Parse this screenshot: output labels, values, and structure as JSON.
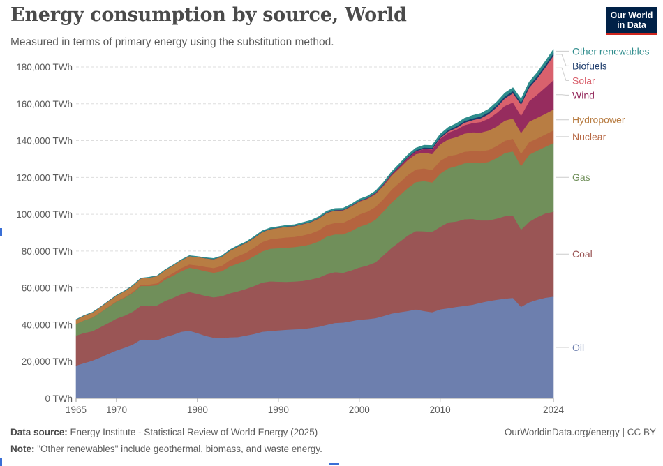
{
  "header": {
    "title": "Energy consumption by source, World",
    "subtitle": "Measured in terms of primary energy using the substitution method.",
    "logo_line1": "Our World",
    "logo_line2": "in Data"
  },
  "footer": {
    "source_label": "Data source:",
    "source_text": "Energy Institute - Statistical Review of World Energy (2025)",
    "note_label": "Note:",
    "note_text": "\"Other renewables\" include geothermal, biomass, and waste energy.",
    "credit": "OurWorldinData.org/energy | CC BY"
  },
  "chart_data": {
    "type": "area",
    "stacked": true,
    "title": "Energy consumption by source, World",
    "xlabel": "",
    "ylabel": "",
    "x_ticks": [
      1965,
      1970,
      1980,
      1990,
      2000,
      2010,
      2024
    ],
    "y_ticks": [
      0,
      20000,
      40000,
      60000,
      80000,
      100000,
      120000,
      140000,
      160000,
      180000
    ],
    "y_tick_labels": [
      "0 TWh",
      "20,000 TWh",
      "40,000 TWh",
      "60,000 TWh",
      "80,000 TWh",
      "100,000 TWh",
      "120,000 TWh",
      "140,000 TWh",
      "160,000 TWh",
      "180,000 TWh"
    ],
    "xlim": [
      1965,
      2024
    ],
    "ylim": [
      0,
      180000
    ],
    "grid": true,
    "legend_position": "right, labels at series ends",
    "x": [
      1965,
      1966,
      1967,
      1968,
      1969,
      1970,
      1971,
      1972,
      1973,
      1974,
      1975,
      1976,
      1977,
      1978,
      1979,
      1980,
      1981,
      1982,
      1983,
      1984,
      1985,
      1986,
      1987,
      1988,
      1989,
      1990,
      1991,
      1992,
      1993,
      1994,
      1995,
      1996,
      1997,
      1998,
      1999,
      2000,
      2001,
      2002,
      2003,
      2004,
      2005,
      2006,
      2007,
      2008,
      2009,
      2010,
      2011,
      2012,
      2013,
      2014,
      2015,
      2016,
      2017,
      2018,
      2019,
      2020,
      2021,
      2022,
      2023,
      2024
    ],
    "series": [
      {
        "name": "Oil",
        "color": "#6d7fae",
        "values": [
          17900,
          19200,
          20500,
          22300,
          24200,
          26100,
          27600,
          29300,
          31900,
          31800,
          31600,
          33400,
          34600,
          36200,
          36800,
          35500,
          34000,
          33000,
          32800,
          33200,
          33300,
          34200,
          35000,
          36200,
          36700,
          37000,
          37300,
          37500,
          37700,
          38300,
          38900,
          40000,
          41000,
          41200,
          42000,
          42800,
          43100,
          43600,
          44800,
          46100,
          46800,
          47500,
          48300,
          47500,
          46800,
          48400,
          49000,
          49700,
          50300,
          50900,
          52000,
          52900,
          53600,
          54200,
          54600,
          49700,
          52200,
          53600,
          54700,
          55300
        ]
      },
      {
        "name": "Coal",
        "color": "#9a5555",
        "values": [
          16200,
          16400,
          16000,
          16400,
          16800,
          17300,
          17400,
          17800,
          18400,
          18300,
          18900,
          19500,
          20100,
          20400,
          21000,
          21300,
          21700,
          21900,
          22700,
          23900,
          24900,
          25300,
          26100,
          26700,
          26900,
          26400,
          26000,
          26000,
          26100,
          26300,
          26700,
          27500,
          27600,
          27000,
          27500,
          28300,
          29100,
          30300,
          33000,
          35700,
          38300,
          41000,
          42600,
          43300,
          43700,
          44800,
          46600,
          46400,
          47000,
          46600,
          44700,
          43800,
          44100,
          44800,
          44800,
          42000,
          43800,
          44900,
          45800,
          46100
        ]
      },
      {
        "name": "Gas",
        "color": "#708f5a",
        "values": [
          6300,
          6800,
          7400,
          8000,
          8700,
          9200,
          9700,
          10300,
          10800,
          11000,
          11000,
          11600,
          12000,
          12500,
          13200,
          13400,
          13400,
          13400,
          13600,
          14600,
          15100,
          15400,
          16200,
          17000,
          17700,
          18200,
          18600,
          18700,
          19000,
          19100,
          19700,
          20500,
          20500,
          20900,
          21400,
          22200,
          22500,
          23200,
          23800,
          24600,
          25200,
          25800,
          26600,
          27300,
          26800,
          28900,
          29400,
          30100,
          30400,
          30500,
          31100,
          31800,
          32900,
          34300,
          34800,
          34500,
          36400,
          36100,
          36200,
          37300
        ]
      },
      {
        "name": "Nuclear",
        "color": "#b5643f",
        "values": [
          60,
          80,
          100,
          130,
          180,
          230,
          330,
          460,
          560,
          740,
          1030,
          1200,
          1450,
          1700,
          1790,
          2020,
          2330,
          2540,
          2900,
          3440,
          4000,
          4280,
          4650,
          5040,
          5160,
          5400,
          5550,
          5570,
          5730,
          5830,
          6030,
          6260,
          6230,
          6320,
          6520,
          6600,
          6800,
          6870,
          6740,
          7000,
          7020,
          7040,
          6910,
          6850,
          6760,
          6940,
          6590,
          6200,
          6250,
          6370,
          6430,
          6500,
          6560,
          6680,
          6900,
          6690,
          6880,
          6580,
          6700,
          6900
        ]
      },
      {
        "name": "Hydropower",
        "color": "#b87d43",
        "values": [
          2300,
          2500,
          2600,
          2700,
          2900,
          3100,
          3300,
          3400,
          3500,
          3800,
          3900,
          4000,
          4100,
          4300,
          4500,
          4600,
          4700,
          4800,
          5000,
          5100,
          5200,
          5300,
          5300,
          5400,
          5500,
          5600,
          5800,
          5800,
          6100,
          6200,
          6400,
          6500,
          6700,
          6700,
          6800,
          7000,
          6900,
          7000,
          7200,
          7600,
          7900,
          8200,
          8300,
          8600,
          8700,
          9000,
          9200,
          9600,
          9900,
          10200,
          10200,
          10500,
          10600,
          10900,
          11000,
          11300,
          11100,
          11300,
          11200,
          11400
        ]
      },
      {
        "name": "Wind",
        "color": "#962c5e",
        "values": [
          0,
          0,
          0,
          0,
          0,
          0,
          0,
          0,
          0,
          0,
          0,
          0,
          0,
          0,
          0,
          0,
          0,
          0,
          0,
          0,
          0,
          0,
          0,
          10,
          20,
          25,
          35,
          45,
          55,
          70,
          85,
          100,
          130,
          170,
          210,
          280,
          350,
          460,
          580,
          760,
          960,
          1200,
          1500,
          1950,
          2450,
          3000,
          3550,
          4000,
          4600,
          5000,
          5700,
          6500,
          7300,
          8000,
          8700,
          9400,
          11100,
          12600,
          14300,
          15900
        ]
      },
      {
        "name": "Solar",
        "color": "#d9616d",
        "values": [
          0,
          0,
          0,
          0,
          0,
          0,
          0,
          0,
          0,
          0,
          0,
          0,
          0,
          0,
          0,
          0,
          0,
          0,
          0,
          0,
          0,
          0,
          0,
          0,
          0,
          0,
          0,
          0,
          0,
          0,
          0,
          0,
          0,
          0,
          0,
          5,
          10,
          15,
          20,
          30,
          40,
          60,
          90,
          140,
          220,
          350,
          670,
          1000,
          1300,
          1600,
          2000,
          2500,
          3200,
          4100,
          5000,
          6100,
          7300,
          8800,
          10900,
          13300
        ]
      },
      {
        "name": "Biofuels",
        "color": "#1c3b6b",
        "values": [
          0,
          0,
          0,
          0,
          0,
          0,
          0,
          0,
          0,
          0,
          0,
          0,
          0,
          0,
          0,
          0,
          40,
          60,
          80,
          100,
          110,
          120,
          130,
          130,
          130,
          120,
          120,
          130,
          140,
          140,
          140,
          150,
          160,
          160,
          160,
          170,
          180,
          200,
          230,
          270,
          320,
          390,
          480,
          620,
          680,
          760,
          770,
          800,
          850,
          920,
          950,
          980,
          1020,
          1080,
          1140,
          1070,
          1160,
          1230,
          1300,
          1350
        ]
      },
      {
        "name": "Other renewables",
        "color": "#2e8c8c",
        "values": [
          100,
          110,
          120,
          130,
          140,
          150,
          160,
          170,
          180,
          190,
          200,
          220,
          240,
          260,
          280,
          300,
          320,
          340,
          360,
          400,
          440,
          470,
          500,
          530,
          560,
          600,
          630,
          660,
          690,
          720,
          760,
          790,
          820,
          840,
          870,
          900,
          930,
          970,
          1010,
          1060,
          1110,
          1160,
          1210,
          1260,
          1310,
          1380,
          1440,
          1500,
          1560,
          1620,
          1680,
          1720,
          1770,
          1810,
          1840,
          1860,
          1910,
          1950,
          2000,
          2050
        ]
      }
    ]
  }
}
